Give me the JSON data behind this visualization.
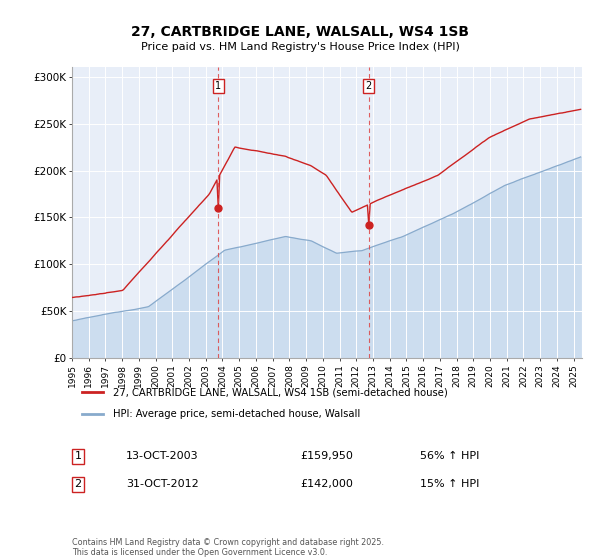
{
  "title_line1": "27, CARTBRIDGE LANE, WALSALL, WS4 1SB",
  "title_line2": "Price paid vs. HM Land Registry's House Price Index (HPI)",
  "red_line_color": "#cc2222",
  "blue_line_color": "#88aacc",
  "blue_fill_color": "#ccddef",
  "plot_bg_color": "#e8eef8",
  "ylim": [
    0,
    310000
  ],
  "yticks": [
    0,
    50000,
    100000,
    150000,
    200000,
    250000,
    300000
  ],
  "ytick_labels": [
    "£0",
    "£50K",
    "£100K",
    "£150K",
    "£200K",
    "£250K",
    "£300K"
  ],
  "marker1_label": "1",
  "marker1_date_str": "13-OCT-2003",
  "marker1_price": 159950,
  "marker1_hpi_pct": "56% ↑ HPI",
  "marker2_label": "2",
  "marker2_date_str": "31-OCT-2012",
  "marker2_price": 142000,
  "marker2_hpi_pct": "15% ↑ HPI",
  "legend_red_label": "27, CARTBRIDGE LANE, WALSALL, WS4 1SB (semi-detached house)",
  "legend_blue_label": "HPI: Average price, semi-detached house, Walsall",
  "footer_text": "Contains HM Land Registry data © Crown copyright and database right 2025.\nThis data is licensed under the Open Government Licence v3.0.",
  "start_year": 1995,
  "end_year": 2025
}
